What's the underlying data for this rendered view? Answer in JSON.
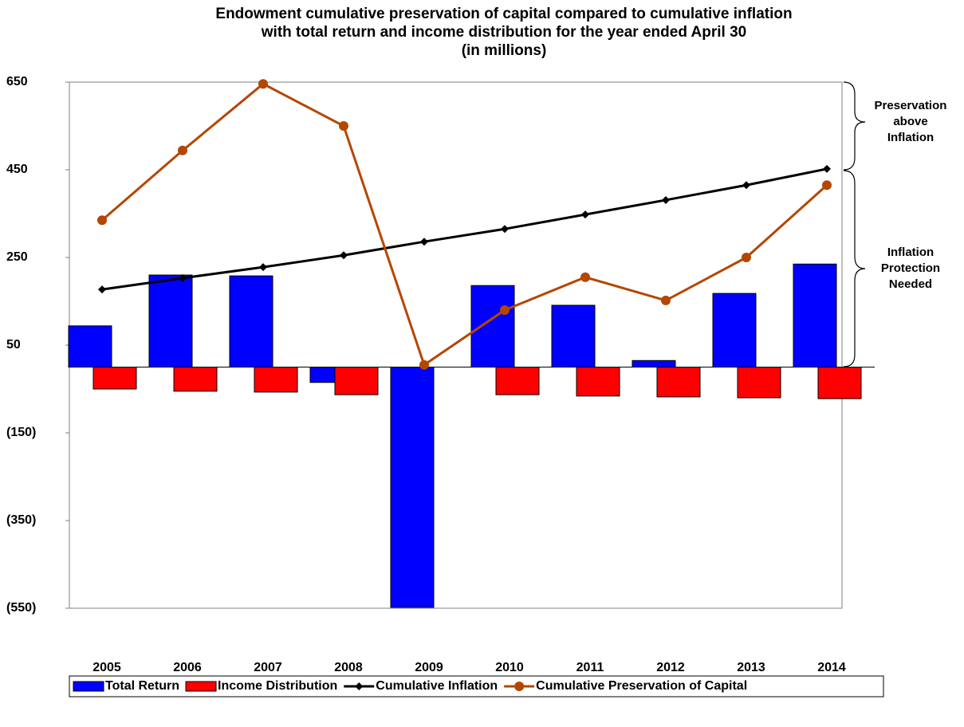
{
  "chart_data": {
    "type": "bar-line",
    "title": [
      "Endowment cumulative preservation of capital compared to cumulative inflation",
      "with total return and income distribution for the year ended April 30",
      "(in millions)"
    ],
    "categories": [
      "2005",
      "2006",
      "2007",
      "2008",
      "2009",
      "2010",
      "2011",
      "2012",
      "2013",
      "2014"
    ],
    "ylim": [
      -550,
      650
    ],
    "yticks": [
      650,
      450,
      250,
      50,
      {
        "value": -150,
        "label": "(150)"
      },
      {
        "value": -350,
        "label": "(350)"
      },
      {
        "value": -550,
        "label": "(550)"
      }
    ],
    "series": [
      {
        "name": "Total Return",
        "kind": "bar",
        "color": "#0000ff",
        "values": [
          94,
          210,
          208,
          -35,
          -548,
          186,
          141,
          15,
          168,
          235
        ]
      },
      {
        "name": "Income Distribution",
        "kind": "bar",
        "color": "#ff0000",
        "values": [
          -50,
          -55,
          -57,
          -63,
          null,
          -63,
          -66,
          -68,
          -70,
          -72
        ]
      },
      {
        "name": "Cumulative Inflation",
        "kind": "line",
        "marker": "diamond",
        "color": "#000000",
        "values": [
          177,
          203,
          228,
          255,
          286,
          315,
          348,
          381,
          415,
          452
        ]
      },
      {
        "name": "Cumulative Preservation of Capital",
        "kind": "line",
        "marker": "circle",
        "color": "#b34700",
        "values": [
          335,
          494,
          646,
          550,
          5,
          130,
          205,
          152,
          250,
          415
        ]
      }
    ],
    "annotations": [
      [
        "Preservation",
        "above",
        "Inflation"
      ],
      [
        "Inflation",
        "Protection",
        "Needed"
      ]
    ]
  }
}
